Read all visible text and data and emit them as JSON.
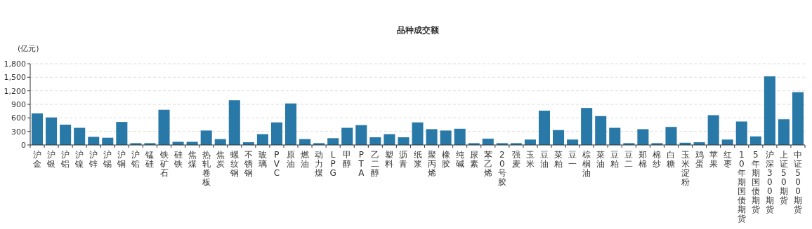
{
  "chart_data": {
    "type": "bar",
    "title": "品种成交额",
    "ylabel": "(亿元)",
    "categories": [
      "沪金",
      "沪银",
      "沪铝",
      "沪镍",
      "沪锌",
      "沪锡",
      "沪铜",
      "沪铅",
      "锰硅",
      "铁矿石",
      "硅铁",
      "焦煤",
      "热轧卷板",
      "焦炭",
      "螺纹钢",
      "不锈钢",
      "玻璃",
      "PVC",
      "原油",
      "燃油",
      "动力煤",
      "LPG",
      "甲醇",
      "PTA",
      "乙二醇",
      "塑料",
      "沥青",
      "纸浆",
      "聚丙烯",
      "橡胶",
      "纯碱",
      "尿素",
      "苯乙烯",
      "20号胶",
      "强麦",
      "玉米",
      "豆油",
      "菜粕",
      "豆一",
      "棕榈油",
      "菜油",
      "豆粕",
      "豆二",
      "郑棉",
      "棉纱",
      "白糖",
      "玉米淀粉",
      "鸡蛋",
      "苹果",
      "红枣",
      "10年期国债期货",
      "5年期国债期货",
      "沪深300期货",
      "上证50期货",
      "中证500期货"
    ],
    "values": [
      700,
      610,
      450,
      380,
      180,
      160,
      510,
      40,
      40,
      780,
      70,
      70,
      320,
      130,
      990,
      60,
      240,
      500,
      920,
      130,
      40,
      150,
      380,
      440,
      170,
      240,
      170,
      500,
      350,
      320,
      360,
      40,
      140,
      40,
      40,
      120,
      760,
      330,
      120,
      820,
      640,
      380,
      40,
      350,
      40,
      400,
      50,
      60,
      660,
      120,
      520,
      190,
      1520,
      570,
      1170
    ],
    "color": "#2878a8",
    "ylim": [
      0,
      1800
    ],
    "yticks": [
      0,
      300,
      600,
      900,
      {
        "value": 1200,
        "label": "1,200"
      },
      {
        "value": 1500,
        "label": "1,500"
      },
      {
        "value": 1800,
        "label": "1,800"
      }
    ],
    "grid": "y"
  }
}
